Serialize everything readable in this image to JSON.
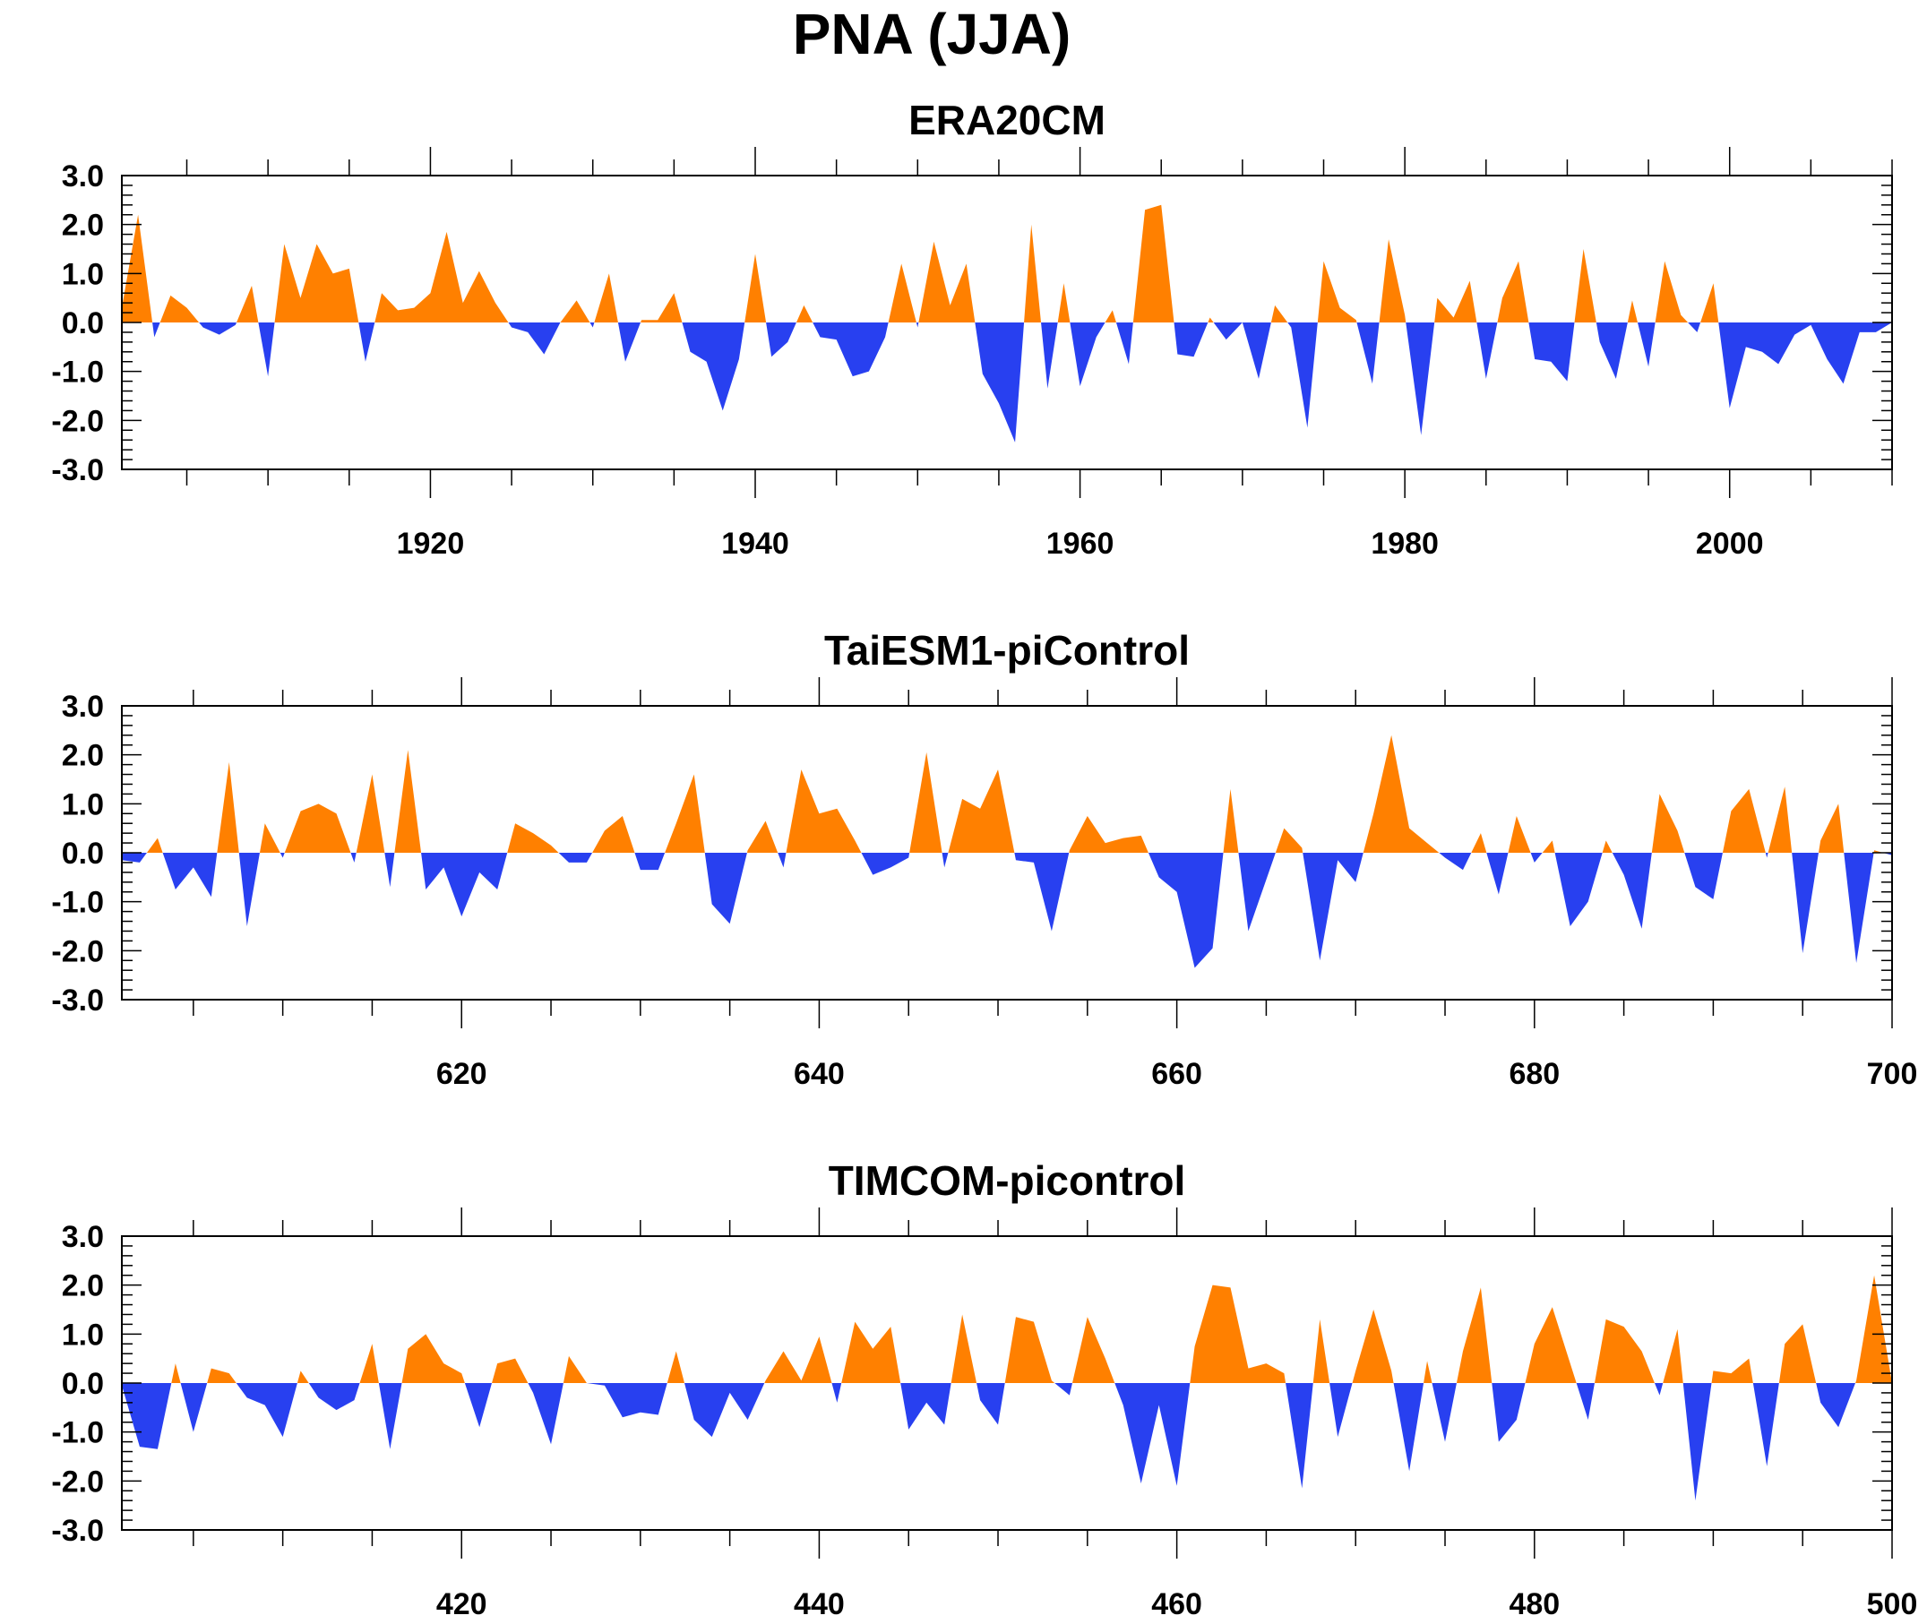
{
  "figure": {
    "title": "PNA (JJA)"
  },
  "colors": {
    "positive": "#ff8000",
    "negative": "#2840f0",
    "axis": "#000000"
  },
  "chart_data": [
    {
      "type": "area",
      "title": "ERA20CM",
      "xlim": [
        1901,
        2010
      ],
      "ylim": [
        -3.0,
        3.0
      ],
      "yticks": [
        "3.0",
        "2.0",
        "1.0",
        "0.0",
        "-1.0",
        "-2.0",
        "-3.0"
      ],
      "xticks": [
        "1920",
        "1940",
        "1960",
        "1980",
        "2000"
      ],
      "x": [
        1901,
        1902,
        1903,
        1904,
        1905,
        1906,
        1907,
        1908,
        1909,
        1910,
        1911,
        1912,
        1913,
        1914,
        1915,
        1916,
        1917,
        1918,
        1919,
        1920,
        1921,
        1922,
        1923,
        1924,
        1925,
        1926,
        1927,
        1928,
        1929,
        1930,
        1931,
        1932,
        1933,
        1934,
        1935,
        1936,
        1937,
        1938,
        1939,
        1940,
        1941,
        1942,
        1943,
        1944,
        1945,
        1946,
        1947,
        1948,
        1949,
        1950,
        1951,
        1952,
        1953,
        1954,
        1955,
        1956,
        1957,
        1958,
        1959,
        1960,
        1961,
        1962,
        1963,
        1964,
        1965,
        1966,
        1967,
        1968,
        1969,
        1970,
        1971,
        1972,
        1973,
        1974,
        1975,
        1976,
        1977,
        1978,
        1979,
        1980,
        1981,
        1982,
        1983,
        1984,
        1985,
        1986,
        1987,
        1988,
        1989,
        1990,
        1991,
        1992,
        1993,
        1994,
        1995,
        1996,
        1997,
        1998,
        1999,
        2000,
        2001,
        2002,
        2003,
        2004,
        2005,
        2006,
        2007,
        2008,
        2009,
        2010
      ],
      "values": [
        0.3,
        2.2,
        -0.3,
        0.55,
        0.3,
        -0.1,
        -0.25,
        -0.05,
        0.75,
        -1.1,
        1.6,
        0.5,
        1.6,
        1.0,
        1.1,
        -0.8,
        0.6,
        0.25,
        0.3,
        0.6,
        1.85,
        0.4,
        1.05,
        0.4,
        -0.1,
        -0.2,
        -0.65,
        0.0,
        0.45,
        -0.1,
        1.0,
        -0.8,
        0.05,
        0.05,
        0.6,
        -0.6,
        -0.8,
        -1.8,
        -0.75,
        1.4,
        -0.7,
        -0.4,
        0.35,
        -0.3,
        -0.35,
        -1.1,
        -1.0,
        -0.3,
        1.2,
        -0.1,
        1.65,
        0.35,
        1.2,
        -1.05,
        -1.65,
        -2.45,
        2.0,
        -1.35,
        0.8,
        -1.3,
        -0.3,
        0.25,
        -0.85,
        2.3,
        2.4,
        -0.65,
        -0.7,
        0.1,
        -0.35,
        0.0,
        -1.15,
        0.35,
        -0.1,
        -2.15,
        1.25,
        0.3,
        0.05,
        -1.25,
        1.7,
        0.15,
        -2.3,
        0.5,
        0.1,
        0.85,
        -1.15,
        0.5,
        1.25,
        -0.75,
        -0.8,
        -1.2,
        1.5,
        -0.4,
        -1.15,
        0.45,
        -0.9,
        1.25,
        0.15,
        -0.2,
        0.8,
        -1.75,
        -0.5,
        -0.6,
        -0.85,
        -0.25,
        -0.05,
        -0.75,
        -1.25,
        -0.2,
        -0.2,
        0.0
      ]
    },
    {
      "type": "area",
      "title": "TaiESM1-piControl",
      "xlim": [
        601,
        700
      ],
      "ylim": [
        -3.0,
        3.0
      ],
      "yticks": [
        "3.0",
        "2.0",
        "1.0",
        "0.0",
        "-1.0",
        "-2.0",
        "-3.0"
      ],
      "xticks": [
        "620",
        "640",
        "660",
        "680",
        "700"
      ],
      "x": [
        601,
        602,
        603,
        604,
        605,
        606,
        607,
        608,
        609,
        610,
        611,
        612,
        613,
        614,
        615,
        616,
        617,
        618,
        619,
        620,
        621,
        622,
        623,
        624,
        625,
        626,
        627,
        628,
        629,
        630,
        631,
        632,
        633,
        634,
        635,
        636,
        637,
        638,
        639,
        640,
        641,
        642,
        643,
        644,
        645,
        646,
        647,
        648,
        649,
        650,
        651,
        652,
        653,
        654,
        655,
        656,
        657,
        658,
        659,
        660,
        661,
        662,
        663,
        664,
        665,
        666,
        667,
        668,
        669,
        670,
        671,
        672,
        673,
        674,
        675,
        676,
        677,
        678,
        679,
        680,
        681,
        682,
        683,
        684,
        685,
        686,
        687,
        688,
        689,
        690,
        691,
        692,
        693,
        694,
        695,
        696,
        697,
        698,
        699,
        700
      ],
      "values": [
        -0.15,
        -0.2,
        0.3,
        -0.75,
        -0.3,
        -0.9,
        1.85,
        -1.5,
        0.6,
        -0.1,
        0.85,
        1.0,
        0.8,
        -0.2,
        1.6,
        -0.7,
        2.1,
        -0.75,
        -0.3,
        -1.3,
        -0.4,
        -0.75,
        0.6,
        0.4,
        0.15,
        -0.2,
        -0.2,
        0.45,
        0.75,
        -0.35,
        -0.35,
        0.6,
        1.6,
        -1.05,
        -1.45,
        0.05,
        0.65,
        -0.3,
        1.7,
        0.8,
        0.9,
        0.25,
        -0.45,
        -0.3,
        -0.1,
        2.05,
        -0.3,
        1.1,
        0.9,
        1.7,
        -0.15,
        -0.2,
        -1.6,
        0.05,
        0.75,
        0.2,
        0.3,
        0.35,
        -0.5,
        -0.8,
        -2.35,
        -1.95,
        1.3,
        -1.6,
        -0.55,
        0.5,
        0.1,
        -2.2,
        -0.15,
        -0.6,
        0.8,
        2.4,
        0.5,
        0.2,
        -0.1,
        -0.35,
        0.4,
        -0.85,
        0.75,
        -0.2,
        0.25,
        -1.5,
        -1.0,
        0.25,
        -0.45,
        -1.55,
        1.2,
        0.45,
        -0.7,
        -0.95,
        0.85,
        1.3,
        -0.1,
        1.35,
        -2.05,
        0.25,
        1.0,
        -2.25,
        0.05,
        -0.05
      ]
    },
    {
      "type": "area",
      "title": "TIMCOM-picontrol",
      "xlim": [
        401,
        500
      ],
      "ylim": [
        -3.0,
        3.0
      ],
      "yticks": [
        "3.0",
        "2.0",
        "1.0",
        "0.0",
        "-1.0",
        "-2.0",
        "-3.0"
      ],
      "xticks": [
        "420",
        "440",
        "460",
        "480",
        "500"
      ],
      "x": [
        401,
        402,
        403,
        404,
        405,
        406,
        407,
        408,
        409,
        410,
        411,
        412,
        413,
        414,
        415,
        416,
        417,
        418,
        419,
        420,
        421,
        422,
        423,
        424,
        425,
        426,
        427,
        428,
        429,
        430,
        431,
        432,
        433,
        434,
        435,
        436,
        437,
        438,
        439,
        440,
        441,
        442,
        443,
        444,
        445,
        446,
        447,
        448,
        449,
        450,
        451,
        452,
        453,
        454,
        455,
        456,
        457,
        458,
        459,
        460,
        461,
        462,
        463,
        464,
        465,
        466,
        467,
        468,
        469,
        470,
        471,
        472,
        473,
        474,
        475,
        476,
        477,
        478,
        479,
        480,
        481,
        482,
        483,
        484,
        485,
        486,
        487,
        488,
        489,
        490,
        491,
        492,
        493,
        494,
        495,
        496,
        497,
        498,
        499,
        500
      ],
      "values": [
        -0.05,
        -1.3,
        -1.35,
        0.4,
        -1.0,
        0.3,
        0.2,
        -0.3,
        -0.45,
        -1.1,
        0.25,
        -0.3,
        -0.55,
        -0.35,
        0.8,
        -1.35,
        0.7,
        1.0,
        0.4,
        0.2,
        -0.9,
        0.4,
        0.5,
        -0.2,
        -1.25,
        0.55,
        0.0,
        -0.05,
        -0.7,
        -0.6,
        -0.65,
        0.65,
        -0.75,
        -1.1,
        -0.2,
        -0.75,
        0.05,
        0.65,
        0.05,
        0.95,
        -0.4,
        1.25,
        0.7,
        1.15,
        -0.95,
        -0.4,
        -0.85,
        1.4,
        -0.35,
        -0.85,
        1.35,
        1.25,
        0.05,
        -0.25,
        1.35,
        0.5,
        -0.45,
        -2.05,
        -0.45,
        -2.1,
        0.75,
        2.0,
        1.95,
        0.3,
        0.4,
        0.2,
        -2.15,
        1.3,
        -1.1,
        0.25,
        1.5,
        0.25,
        -1.8,
        0.45,
        -1.2,
        0.65,
        1.95,
        -1.2,
        -0.75,
        0.8,
        1.55,
        0.4,
        -0.75,
        1.3,
        1.15,
        0.65,
        -0.25,
        1.1,
        -2.4,
        0.25,
        0.2,
        0.5,
        -1.7,
        0.8,
        1.2,
        -0.4,
        -0.9,
        0.05,
        2.2,
        0.0
      ]
    }
  ]
}
